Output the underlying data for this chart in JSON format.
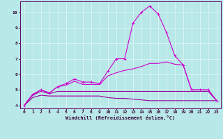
{
  "xlabel": "Windchill (Refroidissement éolien,°C)",
  "xlim": [
    -0.5,
    23.5
  ],
  "ylim": [
    3.8,
    10.7
  ],
  "yticks": [
    4,
    5,
    6,
    7,
    8,
    9,
    10
  ],
  "xticks": [
    0,
    1,
    2,
    3,
    4,
    5,
    6,
    7,
    8,
    9,
    10,
    11,
    12,
    13,
    14,
    15,
    16,
    17,
    18,
    19,
    20,
    21,
    22,
    23
  ],
  "background_color": "#b8e8e8",
  "grid_color": "#d8f4f4",
  "series": [
    {
      "x": [
        0,
        1,
        2,
        3,
        4,
        5,
        6,
        7,
        8,
        9,
        10,
        11,
        12,
        13,
        14,
        15,
        16,
        17,
        18,
        19,
        20,
        21,
        22,
        23
      ],
      "y": [
        4.0,
        4.7,
        5.0,
        4.8,
        5.2,
        5.4,
        5.7,
        5.5,
        5.5,
        5.4,
        6.2,
        7.0,
        7.0,
        9.3,
        10.0,
        10.4,
        9.9,
        8.7,
        7.2,
        6.6,
        5.0,
        5.0,
        5.0,
        4.3
      ],
      "marker": true,
      "color": "#cc00cc",
      "lw": 0.8
    },
    {
      "x": [
        0,
        1,
        2,
        3,
        4,
        5,
        6,
        7,
        8,
        9,
        10,
        11,
        12,
        13,
        14,
        15,
        16,
        17,
        18,
        19,
        20,
        21,
        22,
        23
      ],
      "y": [
        4.0,
        4.7,
        5.0,
        4.8,
        5.2,
        5.3,
        5.55,
        5.35,
        5.35,
        5.35,
        5.9,
        6.1,
        6.25,
        6.35,
        6.5,
        6.7,
        6.7,
        6.8,
        6.65,
        6.6,
        5.0,
        5.0,
        5.0,
        4.3
      ],
      "marker": false,
      "color": "#cc00cc",
      "lw": 0.8
    },
    {
      "x": [
        0,
        1,
        2,
        3,
        4,
        5,
        6,
        7,
        8,
        9,
        10,
        11,
        12,
        13,
        14,
        15,
        16,
        17,
        18,
        19,
        20,
        21,
        22,
        23
      ],
      "y": [
        4.0,
        4.65,
        4.9,
        4.75,
        4.9,
        4.9,
        4.9,
        4.9,
        4.9,
        4.9,
        4.9,
        4.9,
        4.9,
        4.9,
        4.9,
        4.9,
        4.9,
        4.9,
        4.9,
        4.9,
        4.9,
        4.9,
        4.9,
        4.3
      ],
      "marker": false,
      "color": "#990099",
      "lw": 0.8
    },
    {
      "x": [
        0,
        1,
        2,
        3,
        4,
        5,
        6,
        7,
        8,
        9,
        10,
        11,
        12,
        13,
        14,
        15,
        16,
        17,
        18,
        19,
        20,
        21,
        22,
        23
      ],
      "y": [
        4.0,
        4.5,
        4.65,
        4.6,
        4.6,
        4.6,
        4.6,
        4.6,
        4.6,
        4.6,
        4.5,
        4.45,
        4.45,
        4.4,
        4.35,
        4.3,
        4.3,
        4.3,
        4.3,
        4.3,
        4.3,
        4.3,
        4.3,
        4.3
      ],
      "marker": false,
      "color": "#990099",
      "lw": 0.8
    }
  ],
  "spine_color": "#660066",
  "tick_color": "#330033",
  "label_color": "#330033"
}
